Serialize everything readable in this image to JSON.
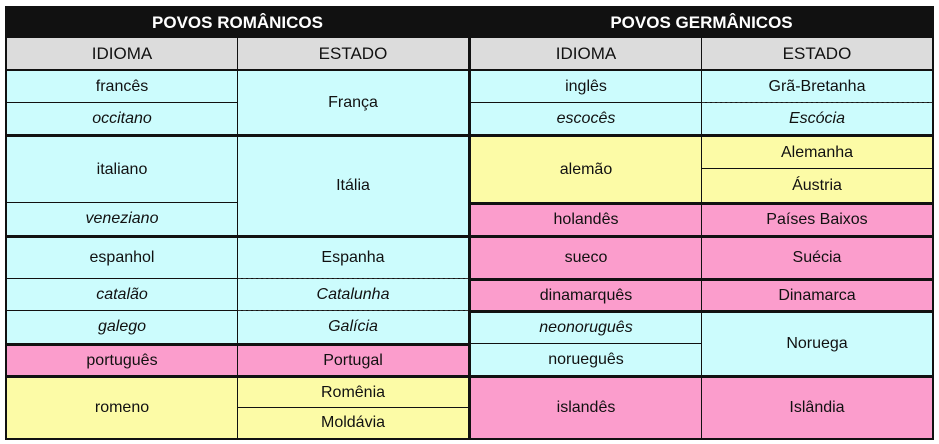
{
  "headers": {
    "left_title": "POVOS ROMÂNICOS",
    "right_title": "POVOS GERMÂNICOS",
    "idioma": "IDIOMA",
    "estado": "ESTADO"
  },
  "romanicos": {
    "frances": "francês",
    "occitano": "occitano",
    "franca": "França",
    "italiano": "italiano",
    "veneziano": "veneziano",
    "italia": "Itália",
    "espanhol": "espanhol",
    "espanha": "Espanha",
    "catalao": "catalão",
    "catalunha": "Catalunha",
    "galego": "galego",
    "galicia": "Galícia",
    "portugues": "português",
    "portugal": "Portugal",
    "romeno": "romeno",
    "romenia": "Romênia",
    "moldavia": "Moldávia"
  },
  "germanicos": {
    "ingles": "inglês",
    "gra_bretanha": "Grã-Bretanha",
    "escoces": "escocês",
    "escocia": "Escócia",
    "alemao": "alemão",
    "alemanha": "Alemanha",
    "austria": "Áustria",
    "holandes": "holandês",
    "paises_baixos": "Países Baixos",
    "sueco": "sueco",
    "suecia": "Suécia",
    "dinamarques": "dinamarquês",
    "dinamarca": "Dinamarca",
    "neonorogues": "neonoruguês",
    "norogues": "norueguês",
    "noruega": "Noruega",
    "islandes": "islandês",
    "islandia": "Islândia"
  },
  "colors": {
    "cyan": "#ccfcfd",
    "yellow": "#fcfba6",
    "pink": "#fb9dcc",
    "header": "#111111",
    "subheader": "#dcdcdc"
  }
}
